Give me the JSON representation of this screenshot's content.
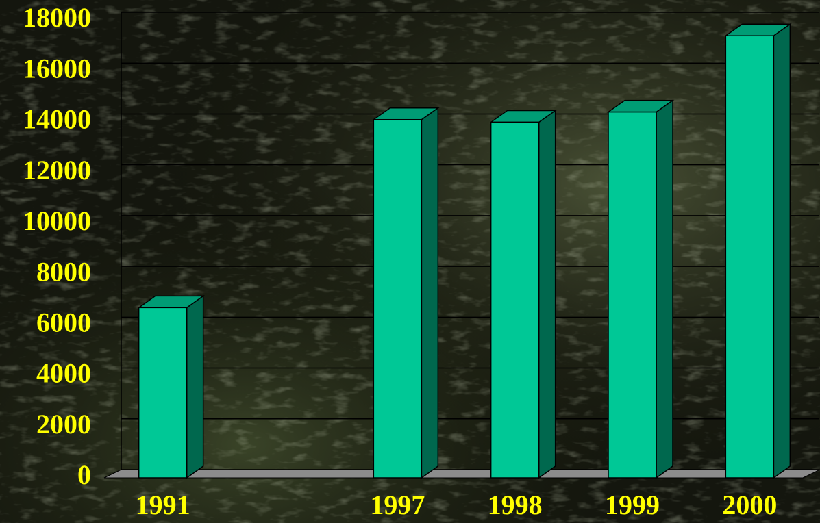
{
  "chart_data": {
    "type": "bar3d",
    "categories": [
      "1991",
      null,
      "1997",
      "1998",
      "1999",
      "2000"
    ],
    "values": [
      6700,
      null,
      14100,
      14000,
      14400,
      17400
    ],
    "color": "#00c896",
    "ylim": [
      0,
      18000
    ],
    "yticks": [
      0,
      2000,
      4000,
      6000,
      8000,
      10000,
      12000,
      14000,
      16000,
      18000
    ],
    "grid": true
  }
}
